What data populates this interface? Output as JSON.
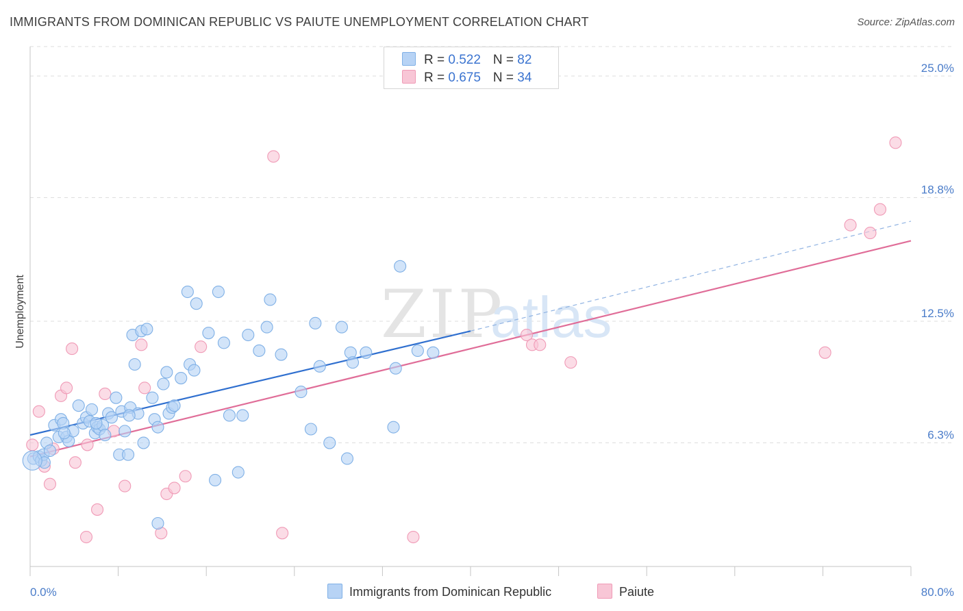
{
  "title": "IMMIGRANTS FROM DOMINICAN REPUBLIC VS PAIUTE UNEMPLOYMENT CORRELATION CHART",
  "source": "Source: ZipAtlas.com",
  "watermark": {
    "zip": "ZIP",
    "atlas": "atlas"
  },
  "legend": {
    "series1": {
      "r_label": "R = ",
      "r_value": "0.522",
      "n_label": "N = ",
      "n_value": "82"
    },
    "series2": {
      "r_label": "R = ",
      "r_value": "0.675",
      "n_label": "N = ",
      "n_value": "34"
    }
  },
  "chart_data": {
    "type": "scatter",
    "title": "IMMIGRANTS FROM DOMINICAN REPUBLIC VS PAIUTE UNEMPLOYMENT CORRELATION CHART",
    "xlabel": "",
    "ylabel": "Unemployment",
    "xlim": [
      0,
      80
    ],
    "ylim": [
      0,
      26.5
    ],
    "x_tick_labels": [
      "0.0%",
      "80.0%"
    ],
    "y_ticks": [
      6.3,
      12.5,
      18.8,
      25.0
    ],
    "y_tick_labels": [
      "6.3%",
      "12.5%",
      "18.8%",
      "25.0%"
    ],
    "grid": true,
    "legend_position": "top-center",
    "series": [
      {
        "name": "Immigrants from Dominican Republic",
        "color": "#7fb0e6",
        "fill": "#b7d3f5",
        "line_color": "#2f6fcf",
        "trend": {
          "x0": 0,
          "y0": 6.7,
          "x1": 40,
          "y1": 12.0,
          "dashed_to_x": 80,
          "dashed_to_y": 17.6
        },
        "points": [
          [
            0.3,
            5.5
          ],
          [
            0.8,
            5.6
          ],
          [
            1.0,
            5.4
          ],
          [
            1.2,
            5.7
          ],
          [
            1.3,
            5.3
          ],
          [
            1.5,
            6.3
          ],
          [
            1.8,
            5.9
          ],
          [
            2.2,
            7.2
          ],
          [
            2.6,
            6.6
          ],
          [
            2.8,
            7.5
          ],
          [
            3.0,
            7.3
          ],
          [
            3.3,
            6.6
          ],
          [
            3.5,
            6.4
          ],
          [
            3.9,
            6.9
          ],
          [
            4.4,
            8.2
          ],
          [
            4.8,
            7.3
          ],
          [
            5.1,
            7.6
          ],
          [
            5.4,
            7.4
          ],
          [
            5.6,
            8.0
          ],
          [
            5.9,
            6.8
          ],
          [
            6.1,
            7.1
          ],
          [
            6.3,
            7.0
          ],
          [
            6.6,
            7.2
          ],
          [
            6.8,
            6.7
          ],
          [
            7.1,
            7.8
          ],
          [
            7.4,
            7.6
          ],
          [
            7.8,
            8.6
          ],
          [
            8.1,
            5.7
          ],
          [
            8.3,
            7.9
          ],
          [
            8.6,
            6.9
          ],
          [
            8.9,
            5.7
          ],
          [
            9.1,
            8.1
          ],
          [
            9.3,
            11.8
          ],
          [
            9.5,
            10.3
          ],
          [
            9.8,
            7.8
          ],
          [
            10.1,
            12.0
          ],
          [
            10.3,
            6.3
          ],
          [
            10.6,
            12.1
          ],
          [
            11.1,
            8.6
          ],
          [
            11.3,
            7.5
          ],
          [
            11.6,
            7.1
          ],
          [
            12.1,
            9.3
          ],
          [
            12.4,
            9.9
          ],
          [
            12.6,
            7.8
          ],
          [
            12.9,
            8.1
          ],
          [
            13.1,
            8.2
          ],
          [
            13.7,
            9.6
          ],
          [
            14.3,
            14.0
          ],
          [
            14.5,
            10.3
          ],
          [
            14.9,
            10.0
          ],
          [
            15.1,
            13.4
          ],
          [
            16.2,
            11.9
          ],
          [
            16.8,
            4.4
          ],
          [
            17.1,
            14.0
          ],
          [
            17.6,
            11.4
          ],
          [
            18.1,
            7.7
          ],
          [
            18.9,
            4.8
          ],
          [
            19.3,
            7.7
          ],
          [
            19.8,
            11.8
          ],
          [
            20.8,
            11.0
          ],
          [
            21.5,
            12.2
          ],
          [
            21.8,
            13.6
          ],
          [
            22.8,
            10.8
          ],
          [
            24.6,
            8.9
          ],
          [
            25.5,
            7.0
          ],
          [
            25.9,
            12.4
          ],
          [
            26.3,
            10.2
          ],
          [
            27.2,
            6.3
          ],
          [
            28.3,
            12.2
          ],
          [
            28.8,
            5.5
          ],
          [
            29.1,
            10.9
          ],
          [
            29.3,
            10.4
          ],
          [
            30.5,
            10.9
          ],
          [
            33.0,
            7.1
          ],
          [
            33.2,
            10.1
          ],
          [
            33.6,
            15.3
          ],
          [
            35.2,
            11.0
          ],
          [
            36.6,
            10.9
          ],
          [
            11.6,
            2.2
          ],
          [
            3.1,
            6.8
          ],
          [
            6.0,
            7.3
          ],
          [
            9.0,
            7.7
          ]
        ]
      },
      {
        "name": "Paiute",
        "color": "#f09ab6",
        "fill": "#f8c6d6",
        "line_color": "#e06d98",
        "trend": {
          "x0": 0,
          "y0": 5.6,
          "x1": 80,
          "y1": 16.6
        },
        "points": [
          [
            0.2,
            6.2
          ],
          [
            0.8,
            7.9
          ],
          [
            1.3,
            5.1
          ],
          [
            1.8,
            4.2
          ],
          [
            2.1,
            6.0
          ],
          [
            2.8,
            8.7
          ],
          [
            3.3,
            9.1
          ],
          [
            3.8,
            11.1
          ],
          [
            4.1,
            5.3
          ],
          [
            5.1,
            1.5
          ],
          [
            5.2,
            6.2
          ],
          [
            6.1,
            2.9
          ],
          [
            6.8,
            8.8
          ],
          [
            7.6,
            6.9
          ],
          [
            8.6,
            4.1
          ],
          [
            10.1,
            11.3
          ],
          [
            10.4,
            9.1
          ],
          [
            11.9,
            1.7
          ],
          [
            12.4,
            3.7
          ],
          [
            13.1,
            4.0
          ],
          [
            14.1,
            4.6
          ],
          [
            15.5,
            11.2
          ],
          [
            22.1,
            20.9
          ],
          [
            22.9,
            1.7
          ],
          [
            34.8,
            1.5
          ],
          [
            45.1,
            11.8
          ],
          [
            45.6,
            11.3
          ],
          [
            46.3,
            11.3
          ],
          [
            49.1,
            10.4
          ],
          [
            72.2,
            10.9
          ],
          [
            74.5,
            17.4
          ],
          [
            76.3,
            17.0
          ],
          [
            77.2,
            18.2
          ],
          [
            78.6,
            21.6
          ]
        ]
      }
    ]
  },
  "bottom_legend": {
    "series1": "Immigrants from Dominican Republic",
    "series2": "Paiute"
  }
}
